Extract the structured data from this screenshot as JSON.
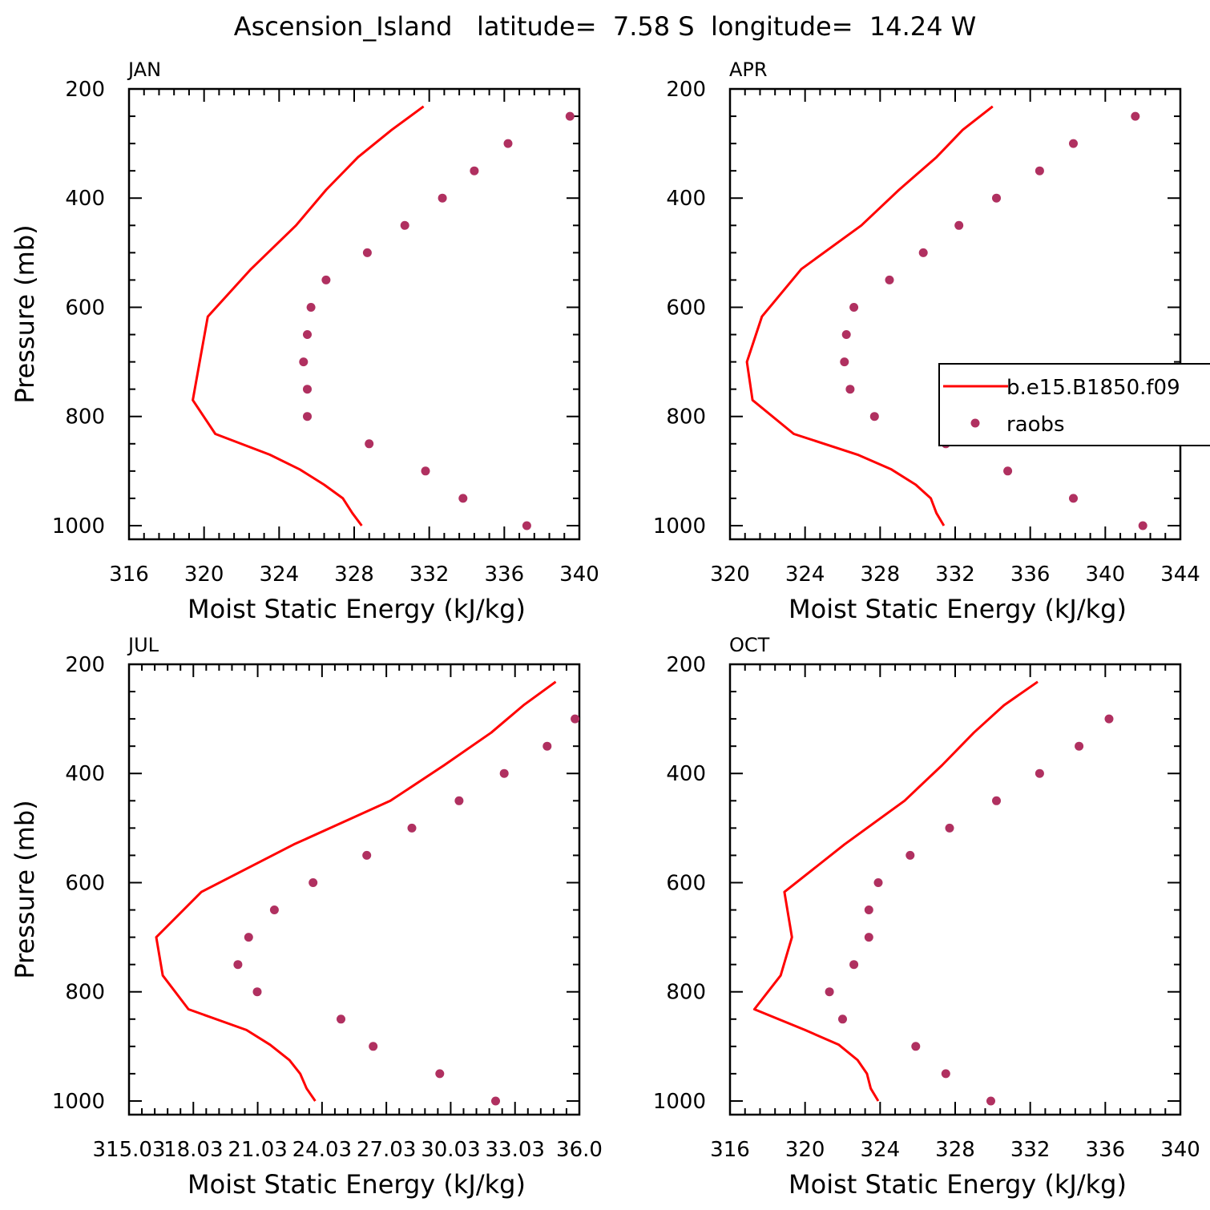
{
  "figure": {
    "title": "Ascension_Island   latitude=  7.58 S  longitude=  14.24 W"
  },
  "legend": {
    "model_label": "b.e15.B1850.f09",
    "obs_label": "raobs"
  },
  "colors": {
    "model_line": "#ff0000",
    "obs_marker": "#b03060",
    "axis": "#000000"
  },
  "chart_data": [
    {
      "type": "line",
      "panel": "JAN",
      "xlabel": "Moist Static Energy (kJ/kg)",
      "ylabel": "Pressure (mb)",
      "xlim": [
        316,
        340
      ],
      "ylim": [
        1025,
        200
      ],
      "xticks": [
        "316",
        "320",
        "324",
        "328",
        "332",
        "336",
        "340"
      ],
      "yticks": [
        "200",
        "400",
        "600",
        "800",
        "1000"
      ],
      "series": [
        {
          "name": "b.e15.B1850.f09",
          "style": "line",
          "points": [
            [
              331.7,
              232
            ],
            [
              330.0,
              275
            ],
            [
              328.2,
              325
            ],
            [
              326.5,
              385
            ],
            [
              324.9,
              450
            ],
            [
              322.5,
              530
            ],
            [
              320.2,
              617
            ],
            [
              319.4,
              770
            ],
            [
              320.6,
              832
            ],
            [
              323.5,
              870
            ],
            [
              325.1,
              897
            ],
            [
              326.4,
              925
            ],
            [
              327.4,
              950
            ],
            [
              327.9,
              977
            ],
            [
              328.4,
              1000
            ]
          ]
        },
        {
          "name": "raobs",
          "style": "markers",
          "points": [
            [
              339.5,
              250
            ],
            [
              336.2,
              300
            ],
            [
              334.4,
              350
            ],
            [
              332.7,
              400
            ],
            [
              330.7,
              450
            ],
            [
              328.7,
              500
            ],
            [
              326.5,
              550
            ],
            [
              325.7,
              600
            ],
            [
              325.5,
              650
            ],
            [
              325.3,
              700
            ],
            [
              325.5,
              750
            ],
            [
              325.5,
              800
            ],
            [
              328.8,
              850
            ],
            [
              331.8,
              900
            ],
            [
              333.8,
              950
            ],
            [
              337.2,
              1000
            ]
          ]
        }
      ]
    },
    {
      "type": "line",
      "panel": "APR",
      "xlabel": "Moist Static Energy (kJ/kg)",
      "ylabel": "",
      "xlim": [
        320,
        344
      ],
      "ylim": [
        1025,
        200
      ],
      "xticks": [
        "320",
        "324",
        "328",
        "332",
        "336",
        "340",
        "344"
      ],
      "yticks": [
        "200",
        "400",
        "600",
        "800",
        "1000"
      ],
      "series": [
        {
          "name": "b.e15.B1850.f09",
          "style": "line",
          "points": [
            [
              334.0,
              232
            ],
            [
              332.4,
              275
            ],
            [
              331.0,
              325
            ],
            [
              329.0,
              385
            ],
            [
              327.0,
              450
            ],
            [
              323.8,
              530
            ],
            [
              321.7,
              617
            ],
            [
              320.9,
              700
            ],
            [
              321.2,
              770
            ],
            [
              323.4,
              832
            ],
            [
              326.8,
              870
            ],
            [
              328.6,
              897
            ],
            [
              329.9,
              925
            ],
            [
              330.7,
              950
            ],
            [
              331.0,
              977
            ],
            [
              331.4,
              1000
            ]
          ]
        },
        {
          "name": "raobs",
          "style": "markers",
          "points": [
            [
              341.6,
              250
            ],
            [
              338.3,
              300
            ],
            [
              336.5,
              350
            ],
            [
              334.2,
              400
            ],
            [
              332.2,
              450
            ],
            [
              330.3,
              500
            ],
            [
              328.5,
              550
            ],
            [
              326.6,
              600
            ],
            [
              326.2,
              650
            ],
            [
              326.1,
              700
            ],
            [
              326.4,
              750
            ],
            [
              327.7,
              800
            ],
            [
              331.5,
              850
            ],
            [
              334.8,
              900
            ],
            [
              338.3,
              950
            ],
            [
              342.0,
              1000
            ]
          ]
        }
      ]
    },
    {
      "type": "line",
      "panel": "JUL",
      "xlabel": "Moist Static Energy (kJ/kg)",
      "ylabel": "Pressure (mb)",
      "xlim": [
        315.03,
        336.0
      ],
      "ylim": [
        1025,
        200
      ],
      "xticks": [
        "315.03",
        "18.03",
        "21.03",
        "24.03",
        "27.03",
        "30.03",
        "33.03",
        "36.0"
      ],
      "yticks": [
        "200",
        "400",
        "600",
        "800",
        "1000"
      ],
      "series": [
        {
          "name": "b.e15.B1850.f09",
          "style": "line",
          "points": [
            [
              334.9,
              232
            ],
            [
              333.4,
              275
            ],
            [
              331.9,
              325
            ],
            [
              329.7,
              385
            ],
            [
              327.2,
              450
            ],
            [
              322.7,
              530
            ],
            [
              318.4,
              617
            ],
            [
              316.3,
              700
            ],
            [
              316.6,
              770
            ],
            [
              317.8,
              832
            ],
            [
              320.5,
              870
            ],
            [
              321.6,
              897
            ],
            [
              322.5,
              925
            ],
            [
              323.0,
              950
            ],
            [
              323.3,
              977
            ],
            [
              323.7,
              1000
            ]
          ]
        },
        {
          "name": "raobs",
          "style": "markers",
          "points": [
            [
              335.8,
              300
            ],
            [
              334.5,
              350
            ],
            [
              332.5,
              400
            ],
            [
              330.4,
              450
            ],
            [
              328.2,
              500
            ],
            [
              326.1,
              550
            ],
            [
              323.6,
              600
            ],
            [
              321.8,
              650
            ],
            [
              320.6,
              700
            ],
            [
              320.1,
              750
            ],
            [
              321.0,
              800
            ],
            [
              324.9,
              850
            ],
            [
              326.4,
              900
            ],
            [
              329.5,
              950
            ],
            [
              332.1,
              1000
            ]
          ]
        }
      ]
    },
    {
      "type": "line",
      "panel": "OCT",
      "xlabel": "Moist Static Energy (kJ/kg)",
      "ylabel": "",
      "xlim": [
        316,
        340
      ],
      "ylim": [
        1025,
        200
      ],
      "xticks": [
        "316",
        "320",
        "324",
        "328",
        "332",
        "336",
        "340"
      ],
      "yticks": [
        "200",
        "400",
        "600",
        "800",
        "1000"
      ],
      "series": [
        {
          "name": "b.e15.B1850.f09",
          "style": "line",
          "points": [
            [
              332.4,
              232
            ],
            [
              330.6,
              275
            ],
            [
              329.0,
              325
            ],
            [
              327.3,
              385
            ],
            [
              325.3,
              450
            ],
            [
              322.1,
              530
            ],
            [
              318.9,
              617
            ],
            [
              319.3,
              700
            ],
            [
              318.7,
              770
            ],
            [
              317.3,
              832
            ],
            [
              320.0,
              870
            ],
            [
              321.8,
              897
            ],
            [
              322.8,
              925
            ],
            [
              323.3,
              950
            ],
            [
              323.5,
              977
            ],
            [
              323.9,
              1000
            ]
          ]
        },
        {
          "name": "raobs",
          "style": "markers",
          "points": [
            [
              336.2,
              300
            ],
            [
              334.6,
              350
            ],
            [
              332.5,
              400
            ],
            [
              330.2,
              450
            ],
            [
              327.7,
              500
            ],
            [
              325.6,
              550
            ],
            [
              323.9,
              600
            ],
            [
              323.4,
              650
            ],
            [
              323.4,
              700
            ],
            [
              322.6,
              750
            ],
            [
              321.3,
              800
            ],
            [
              322.0,
              850
            ],
            [
              325.9,
              900
            ],
            [
              327.5,
              950
            ],
            [
              329.9,
              1000
            ]
          ]
        }
      ]
    }
  ]
}
